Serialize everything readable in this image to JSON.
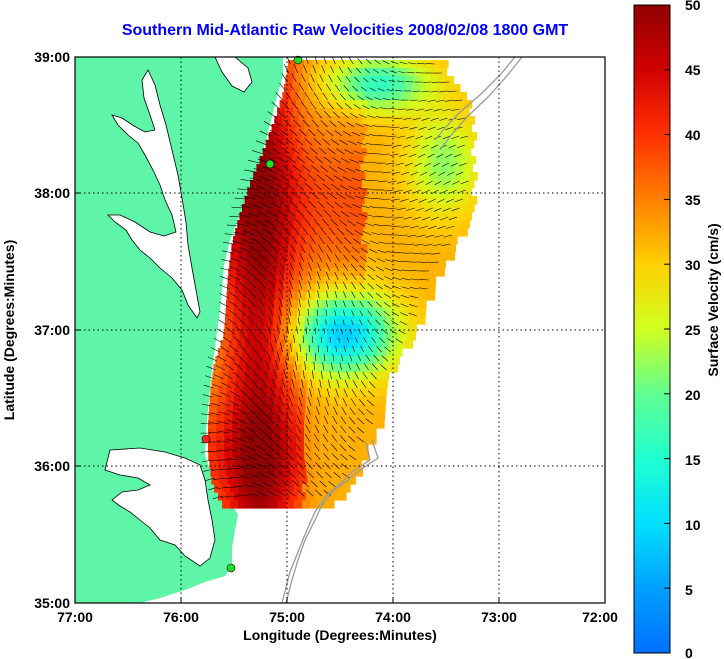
{
  "title": "Southern Mid-Atlantic Raw Velocities 2008/02/08 1800 GMT",
  "x_axis": {
    "label": "Longitude (Degrees:Minutes)",
    "ticks": [
      "77:00",
      "76:00",
      "75:00",
      "74:00",
      "73:00",
      "72:00"
    ]
  },
  "y_axis": {
    "label": "Latitude (Degrees:Minutes)",
    "ticks": [
      "39:00",
      "38:00",
      "37:00",
      "36:00",
      "35:00"
    ]
  },
  "colorbar": {
    "label": "Surface Velocity (cm/s)",
    "ticks": [
      "0",
      "5",
      "10",
      "15",
      "20",
      "25",
      "30",
      "35",
      "40",
      "45",
      "50"
    ],
    "min": 0,
    "max": 50
  },
  "chart_data": {
    "type": "heatmap",
    "title": "Southern Mid-Atlantic Raw Velocities 2008/02/08 1800 GMT",
    "xlabel": "Longitude (Degrees:Minutes)",
    "ylabel": "Latitude (Degrees:Minutes)",
    "xlim": [
      -77,
      -72
    ],
    "ylim": [
      35,
      39
    ],
    "colorbar_label": "Surface Velocity (cm/s)",
    "clim": [
      0,
      50
    ],
    "grid": true,
    "colors": {
      "land": "#5ff5a8",
      "ocean": "#ffffff",
      "station": "#22dd22",
      "station_alt": "#ff2222"
    }
  }
}
